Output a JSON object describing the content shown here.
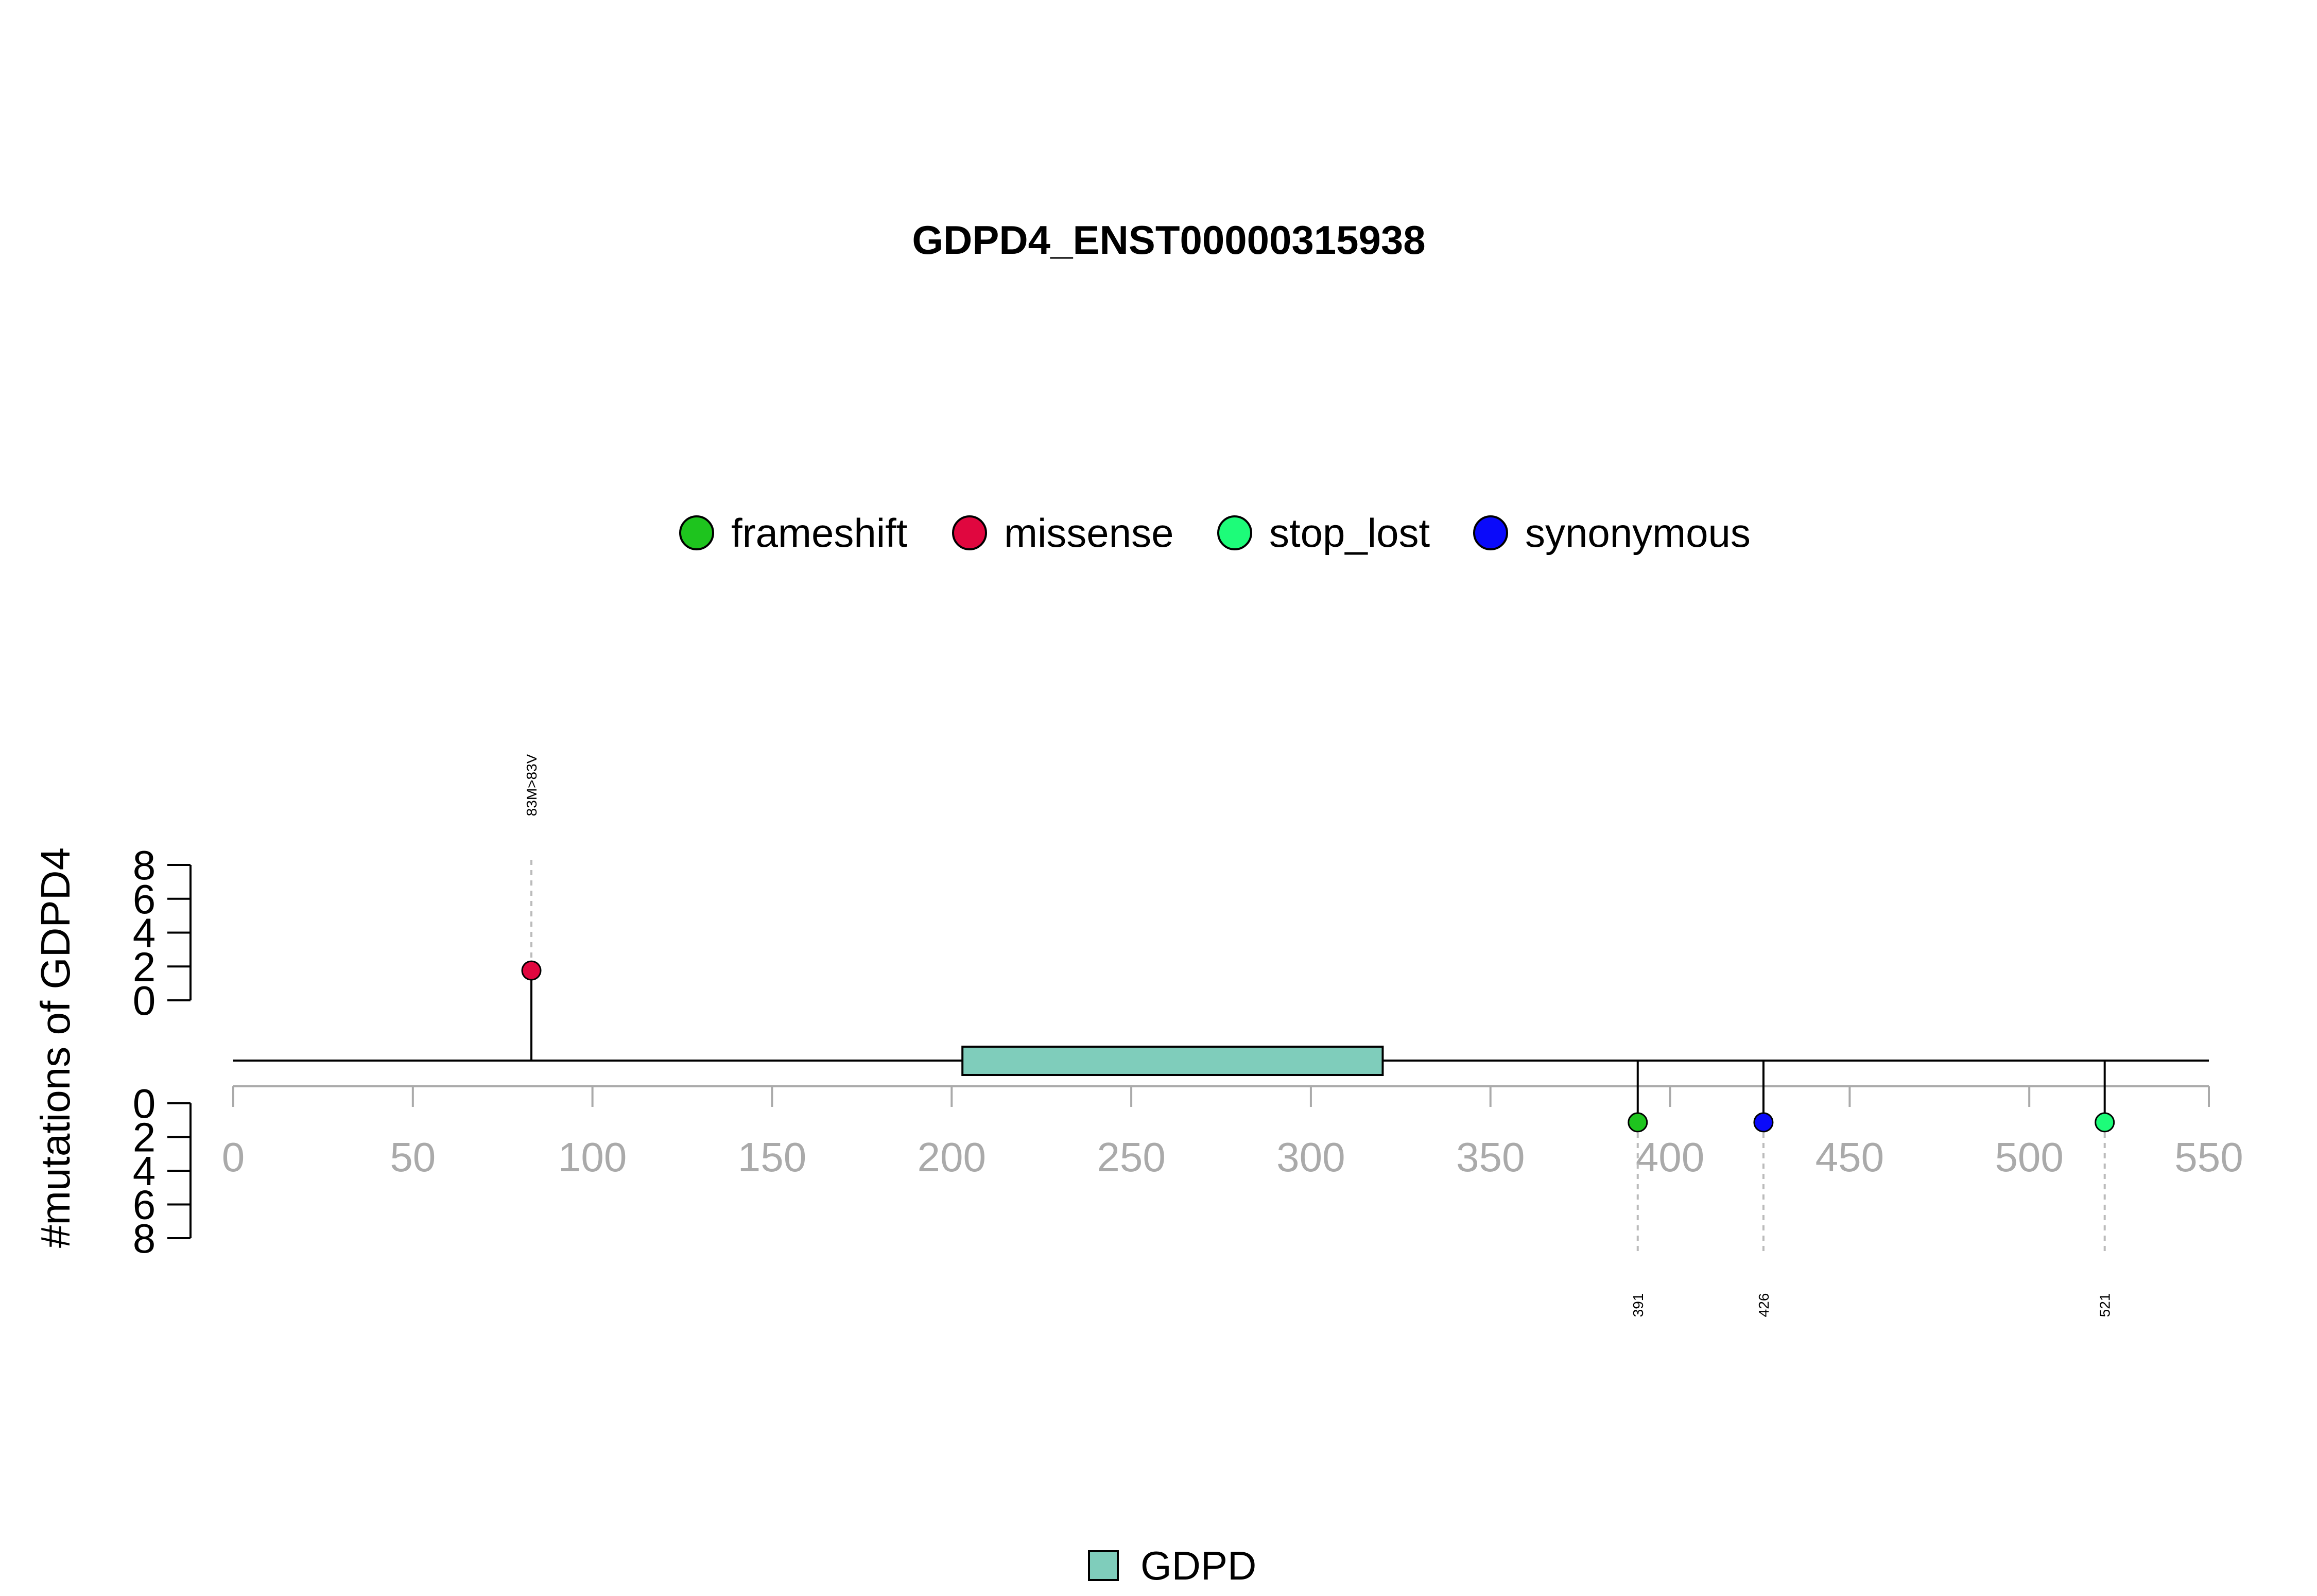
{
  "chart_data": {
    "type": "lollipop",
    "title": "GDPD4_ENST00000315938",
    "ylabel": "#mutations of GDPD4",
    "xlim": [
      0,
      550
    ],
    "x_ticks": [
      "0",
      "50",
      "100",
      "150",
      "200",
      "250",
      "300",
      "350",
      "400",
      "450",
      "500",
      "550"
    ],
    "y_ticks": [
      "0",
      "2",
      "4",
      "6",
      "8"
    ],
    "ylim": [
      0,
      8
    ],
    "grid": false,
    "legend_position": "top",
    "legend": [
      {
        "name": "frameshift",
        "color": "#1ec41e"
      },
      {
        "name": "missense",
        "color": "#e0073f"
      },
      {
        "name": "stop_lost",
        "color": "#1dfc79"
      },
      {
        "name": "synonymous",
        "color": "#0a0afa"
      }
    ],
    "domains": [
      {
        "name": "GDPD",
        "start": 203,
        "end": 320,
        "color": "#7fcdbb"
      }
    ],
    "domain_legend_position": "bottom",
    "mutations": [
      {
        "position": 83,
        "count": 1,
        "type": "missense",
        "label": "83M>83V",
        "side": "top"
      },
      {
        "position": 391,
        "count": 1,
        "type": "frameshift",
        "label": "391",
        "side": "bottom"
      },
      {
        "position": 426,
        "count": 1,
        "type": "synonymous",
        "label": "426",
        "side": "bottom"
      },
      {
        "position": 521,
        "count": 1,
        "type": "stop_lost",
        "label": "521",
        "side": "bottom"
      }
    ]
  }
}
